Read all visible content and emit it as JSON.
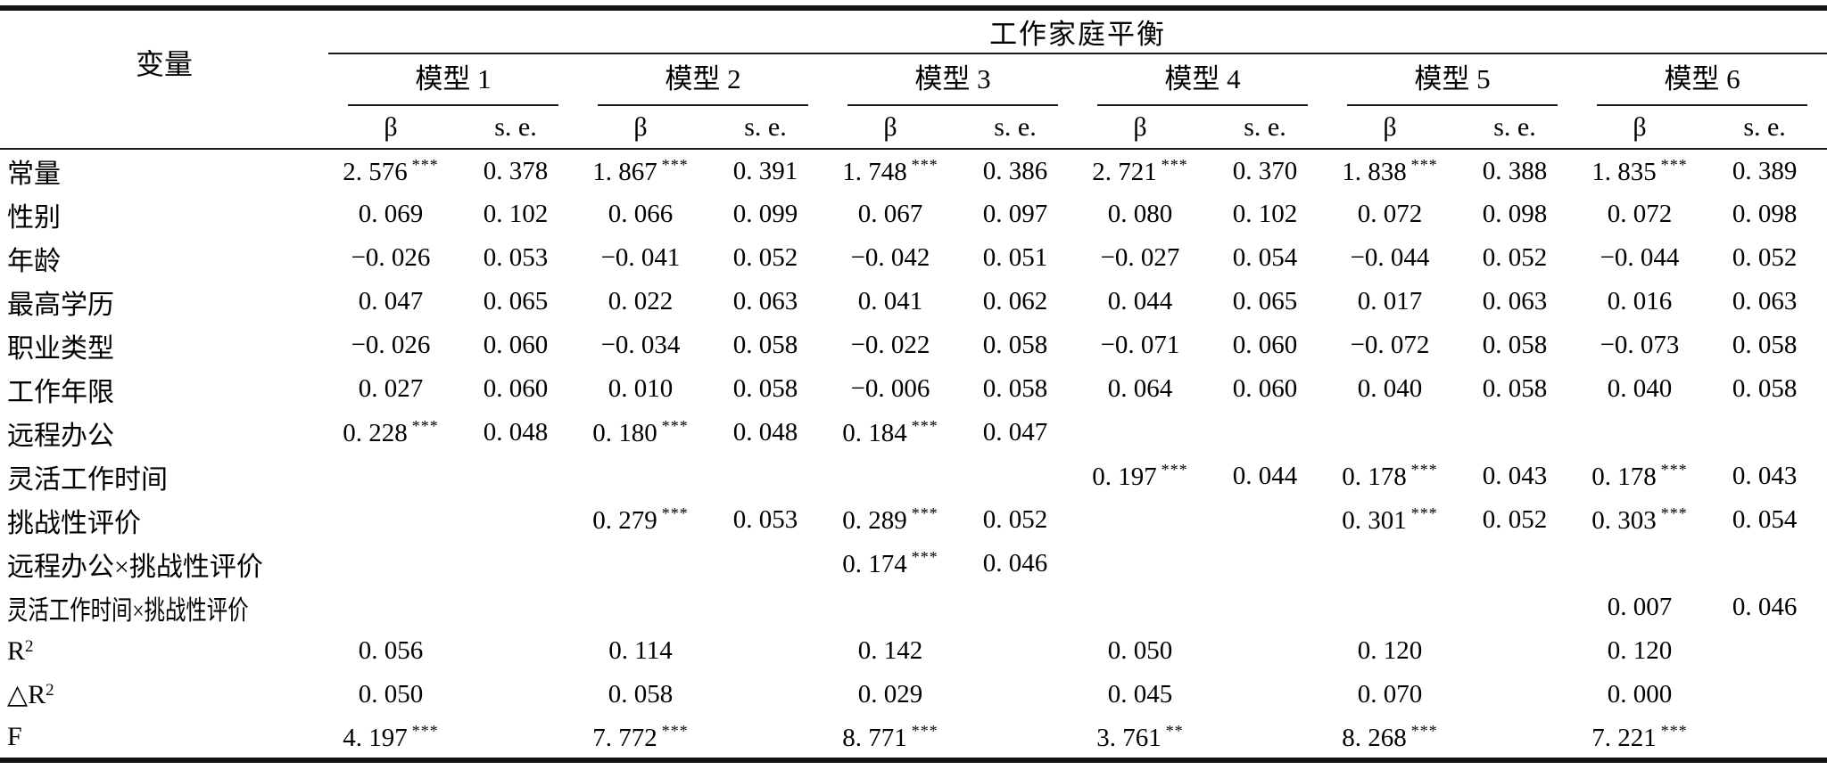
{
  "table": {
    "dv_header": "工作家庭平衡",
    "variable_header": "变量",
    "models": [
      "模型 1",
      "模型 2",
      "模型 3",
      "模型 4",
      "模型 5",
      "模型 6"
    ],
    "stat_headers": {
      "beta": "β",
      "se": "s. e."
    },
    "rows": [
      {
        "label": "常量",
        "cells": [
          [
            "2. 576",
            "***",
            "0. 378"
          ],
          [
            "1. 867",
            "***",
            "0. 391"
          ],
          [
            "1. 748",
            "***",
            "0. 386"
          ],
          [
            "2. 721",
            "***",
            "0. 370"
          ],
          [
            "1. 838",
            "***",
            "0. 388"
          ],
          [
            "1. 835",
            "***",
            "0. 389"
          ]
        ]
      },
      {
        "label": "性别",
        "cells": [
          [
            "0. 069",
            "",
            "0. 102"
          ],
          [
            "0. 066",
            "",
            "0. 099"
          ],
          [
            "0. 067",
            "",
            "0. 097"
          ],
          [
            "0. 080",
            "",
            "0. 102"
          ],
          [
            "0. 072",
            "",
            "0. 098"
          ],
          [
            "0. 072",
            "",
            "0. 098"
          ]
        ]
      },
      {
        "label": "年龄",
        "cells": [
          [
            "−0. 026",
            "",
            "0. 053"
          ],
          [
            "−0. 041",
            "",
            "0. 052"
          ],
          [
            "−0. 042",
            "",
            "0. 051"
          ],
          [
            "−0. 027",
            "",
            "0. 054"
          ],
          [
            "−0. 044",
            "",
            "0. 052"
          ],
          [
            "−0. 044",
            "",
            "0. 052"
          ]
        ]
      },
      {
        "label": "最高学历",
        "cells": [
          [
            "0. 047",
            "",
            "0. 065"
          ],
          [
            "0. 022",
            "",
            "0. 063"
          ],
          [
            "0. 041",
            "",
            "0. 062"
          ],
          [
            "0. 044",
            "",
            "0. 065"
          ],
          [
            "0. 017",
            "",
            "0. 063"
          ],
          [
            "0. 016",
            "",
            "0. 063"
          ]
        ]
      },
      {
        "label": "职业类型",
        "cells": [
          [
            "−0. 026",
            "",
            "0. 060"
          ],
          [
            "−0. 034",
            "",
            "0. 058"
          ],
          [
            "−0. 022",
            "",
            "0. 058"
          ],
          [
            "−0. 071",
            "",
            "0. 060"
          ],
          [
            "−0. 072",
            "",
            "0. 058"
          ],
          [
            "−0. 073",
            "",
            "0. 058"
          ]
        ]
      },
      {
        "label": "工作年限",
        "cells": [
          [
            "0. 027",
            "",
            "0. 060"
          ],
          [
            "0. 010",
            "",
            "0. 058"
          ],
          [
            "−0. 006",
            "",
            "0. 058"
          ],
          [
            "0. 064",
            "",
            "0. 060"
          ],
          [
            "0. 040",
            "",
            "0. 058"
          ],
          [
            "0. 040",
            "",
            "0. 058"
          ]
        ]
      },
      {
        "label": "远程办公",
        "cells": [
          [
            "0. 228",
            "***",
            "0. 048"
          ],
          [
            "0. 180",
            "***",
            "0. 048"
          ],
          [
            "0. 184",
            "***",
            "0. 047"
          ],
          null,
          null,
          null
        ]
      },
      {
        "label": "灵活工作时间",
        "cells": [
          null,
          null,
          null,
          [
            "0. 197",
            "***",
            "0. 044"
          ],
          [
            "0. 178",
            "***",
            "0. 043"
          ],
          [
            "0. 178",
            "***",
            "0. 043"
          ]
        ]
      },
      {
        "label": "挑战性评价",
        "cells": [
          null,
          [
            "0. 279",
            "***",
            "0. 053"
          ],
          [
            "0. 289",
            "***",
            "0. 052"
          ],
          null,
          [
            "0. 301",
            "***",
            "0. 052"
          ],
          [
            "0. 303",
            "***",
            "0. 054"
          ]
        ]
      },
      {
        "label": "远程办公×挑战性评价",
        "cells": [
          null,
          null,
          [
            "0. 174",
            "***",
            "0. 046"
          ],
          null,
          null,
          null
        ]
      },
      {
        "label": "灵活工作时间×挑战性评价",
        "cells": [
          null,
          null,
          null,
          null,
          null,
          [
            "0. 007",
            "",
            "0. 046"
          ]
        ]
      },
      {
        "label": "R",
        "label_sup": "2",
        "cells": [
          [
            "0. 056",
            "",
            ""
          ],
          [
            "0. 114",
            "",
            ""
          ],
          [
            "0. 142",
            "",
            ""
          ],
          [
            "0. 050",
            "",
            ""
          ],
          [
            "0. 120",
            "",
            ""
          ],
          [
            "0. 120",
            "",
            ""
          ]
        ]
      },
      {
        "label": "△R",
        "label_sup": "2",
        "cells": [
          [
            "0. 050",
            "",
            ""
          ],
          [
            "0. 058",
            "",
            ""
          ],
          [
            "0. 029",
            "",
            ""
          ],
          [
            "0. 045",
            "",
            ""
          ],
          [
            "0. 070",
            "",
            ""
          ],
          [
            "0. 000",
            "",
            ""
          ]
        ]
      },
      {
        "label": "F",
        "cells": [
          [
            "4. 197",
            "***",
            ""
          ],
          [
            "7. 772",
            "***",
            ""
          ],
          [
            "8. 771",
            "***",
            ""
          ],
          [
            "3. 761",
            "**",
            ""
          ],
          [
            "8. 268",
            "***",
            ""
          ],
          [
            "7. 221",
            "***",
            ""
          ]
        ]
      }
    ]
  }
}
